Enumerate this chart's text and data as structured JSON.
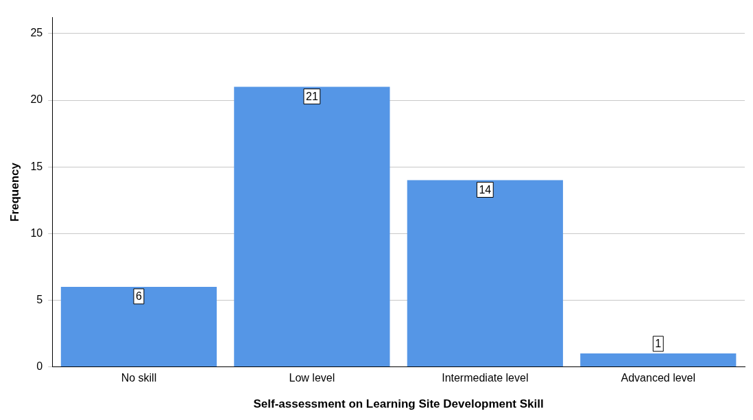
{
  "chart_data": {
    "type": "bar",
    "xlabel": "Self-assessment on Learning Site Development Skill",
    "ylabel": "Frequency",
    "categories": [
      "No skill",
      "Low level",
      "Intermediate level",
      "Advanced level"
    ],
    "values": [
      6,
      21,
      14,
      1
    ],
    "color": "#5596e6",
    "ylim": [
      0,
      26.2
    ],
    "yticks": [
      0,
      5,
      10,
      15,
      20,
      25
    ],
    "grid": "y",
    "legend": false,
    "data_labels": true
  }
}
